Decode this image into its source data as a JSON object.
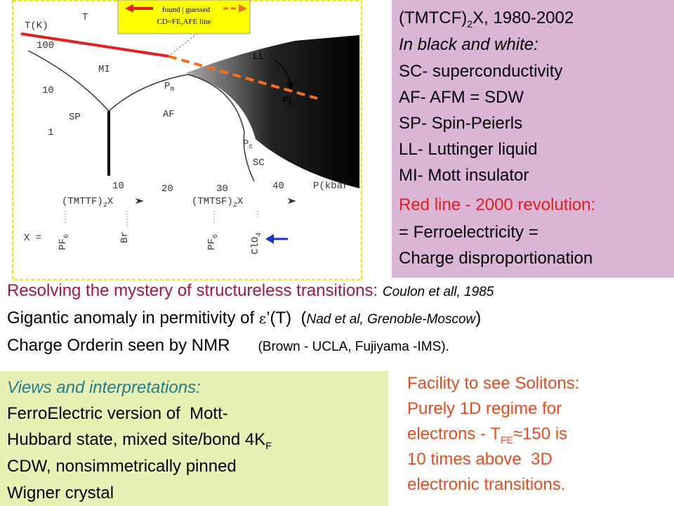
{
  "diagram": {
    "legend_found_guessed": "found | guessed",
    "legend_line": "CD=FE,AFE  line",
    "y_axis_label": "T(K)",
    "y_ticks": [
      "100",
      "10",
      "1"
    ],
    "x_ticks": [
      "10",
      "20",
      "30",
      "40"
    ],
    "x_axis_label": "P(kbar",
    "regions": {
      "t": "T",
      "mi": "MI",
      "sp": "SP",
      "af": "AF",
      "sc": "SC",
      "ll": "LL",
      "fl": "FL"
    },
    "pm": {
      "main": "P",
      "sub": "m"
    },
    "pc": {
      "main": "P",
      "sub": "c"
    },
    "families": [
      {
        "main": "(TMTTF)",
        "sub": "2",
        "suffix": "X"
      },
      {
        "main": "(TMTSF)",
        "sub": "2",
        "suffix": "X"
      }
    ],
    "x_label": "X =",
    "anions": [
      {
        "main": "PF",
        "sub": "6"
      },
      {
        "main": "Br"
      },
      {
        "main": "PF",
        "sub": "6"
      },
      {
        "main": "ClO",
        "sub": "4"
      }
    ]
  },
  "info": {
    "title": {
      "main": "(TMTCF)",
      "sub": "2",
      "suffix": "X, 1980-2002"
    },
    "lines": [
      "In black and white:",
      "SC- superconductivity",
      "AF- AFM = SDW",
      "SP- Spin-Peierls",
      "LL- Luttinger liquid",
      "MI- Mott insulator",
      "Red line - 2000 revolution:",
      "= Ferroelectricity =",
      "Charge disproportionation"
    ]
  },
  "findings": {
    "mystery": {
      "lead": "Resolving the mystery of structureless transitions:",
      "ref": "Coulon et all, 1985"
    },
    "anomaly": {
      "lead": "Gigantic anomaly in permitivity of ",
      "symbol": "ε",
      "after": "’(T)  (",
      "ref": "Nad et al, Grenoble-Moscow",
      "close": ")"
    },
    "nmr": {
      "lead": "Charge Orderin seen by NMR",
      "ref": "(Brown - UCLA, Fujiyama -IMS)."
    }
  },
  "views": {
    "heading": "Views and interpretations:",
    "line1": "FerroElectric version of  Mott-",
    "line2": {
      "main": "Hubbard state, mixed site/bond 4K",
      "sub": "F"
    },
    "line3": "CDW, nonsimmetrically pinned",
    "line4": "Wigner crystal"
  },
  "solitons": {
    "line1": "Facility to see Solitons:",
    "line2": "Purely 1D regime for",
    "line3": {
      "main": "electrons - T",
      "sub": "FE",
      "after": "≈150 is"
    },
    "line4": "10 times above  3D",
    "line5": "electronic transitions."
  }
}
